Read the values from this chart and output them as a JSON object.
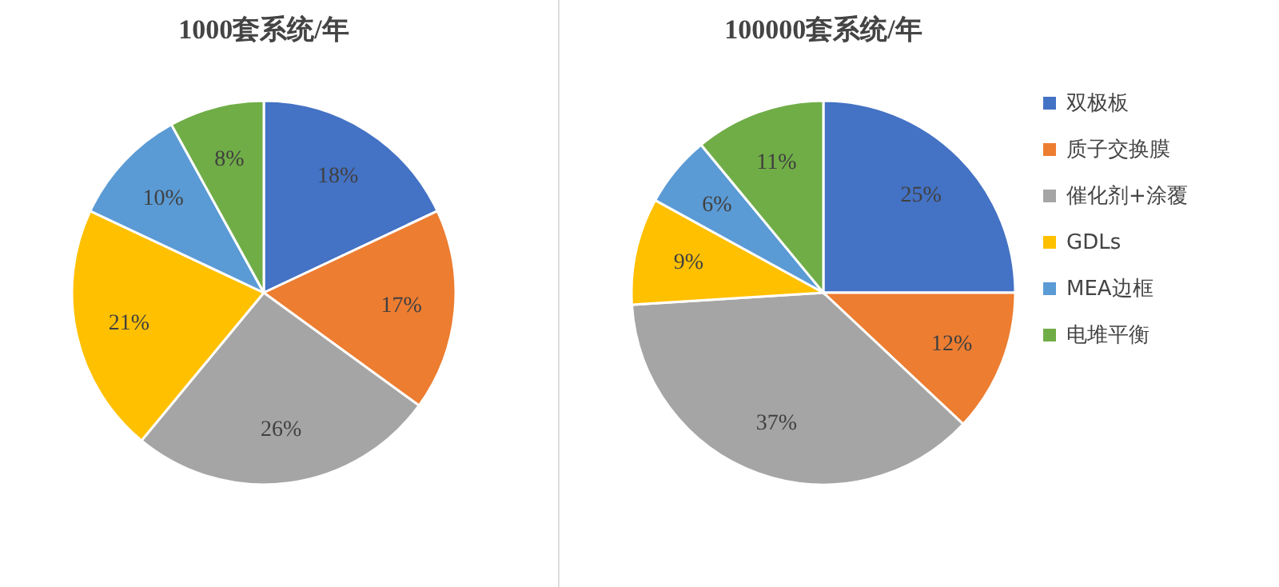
{
  "chart_data": [
    {
      "type": "pie",
      "title": "1000套系统/年",
      "categories": [
        null,
        null,
        null,
        null,
        null,
        null
      ],
      "values": [
        18,
        17,
        26,
        21,
        10,
        8
      ],
      "value_labels": [
        "18%",
        "17%",
        "26%",
        "21%",
        "10%",
        "8%"
      ],
      "colors": [
        "#4472c4",
        "#ed7d31",
        "#a5a5a5",
        "#ffc000",
        "#5b9bd5",
        "#70ad47"
      ],
      "legend": false
    },
    {
      "type": "pie",
      "title": "100000套系统/年",
      "categories": [
        "双极板",
        "质子交换膜",
        "催化剂+涂覆",
        "GDLs",
        "MEA边框",
        "电堆平衡"
      ],
      "values": [
        25,
        12,
        37,
        9,
        6,
        11
      ],
      "value_labels": [
        "25%",
        "12%",
        "37%",
        "9%",
        "6%",
        "11%"
      ],
      "colors": [
        "#4472c4",
        "#ed7d31",
        "#a5a5a5",
        "#ffc000",
        "#5b9bd5",
        "#70ad47"
      ],
      "legend": "right"
    }
  ]
}
